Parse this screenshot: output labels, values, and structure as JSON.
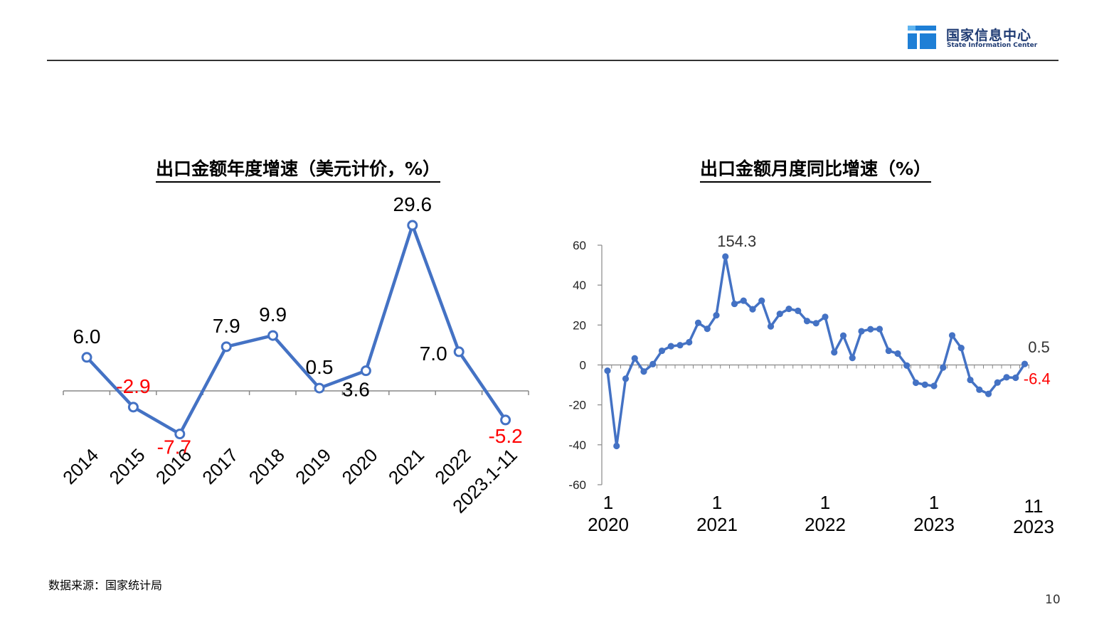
{
  "header": {
    "org_cn": "国家信息中心",
    "org_en": "State Information Center"
  },
  "footer": {
    "source": "数据来源：国家统计局",
    "page_number": "10"
  },
  "colors": {
    "line": "#4472C4",
    "negative_label": "#ff0000",
    "positive_label": "#000000",
    "logo": "#1f3b73"
  },
  "chart_data": [
    {
      "type": "line",
      "title": "出口金额年度增速（美元计价，%）",
      "categories": [
        "2014",
        "2015",
        "2016",
        "2017",
        "2018",
        "2019",
        "2020",
        "2021",
        "2022",
        "2023.1-11"
      ],
      "values": [
        6.0,
        -2.9,
        -7.7,
        7.9,
        9.9,
        0.5,
        3.6,
        29.6,
        7.0,
        -5.2
      ],
      "data_labels": [
        "6.0",
        "-2.9",
        "-7.7",
        "7.9",
        "9.9",
        "0.5",
        "3.6",
        "29.6",
        "7.0",
        "-5.2"
      ],
      "marker": "hollow-circle",
      "grid": false
    },
    {
      "type": "line",
      "title": "出口金额月度同比增速（%）",
      "x_tick_labels": [
        {
          "month": "1",
          "year": "2020"
        },
        {
          "month": "1",
          "year": "2021"
        },
        {
          "month": "1",
          "year": "2022"
        },
        {
          "month": "1",
          "year": "2023"
        },
        {
          "month": "11",
          "year": "2023"
        }
      ],
      "ylim": [
        -60,
        60
      ],
      "yticks": [
        "60",
        "40",
        "20",
        "0",
        "-20",
        "-40",
        "-60"
      ],
      "values": [
        -2.9,
        -40.6,
        -6.9,
        3.3,
        -3.3,
        0.4,
        7.1,
        9.4,
        9.9,
        11.4,
        21.1,
        18.1,
        24.9,
        154.3,
        30.6,
        32.2,
        27.9,
        32.2,
        19.3,
        25.6,
        28.1,
        27.1,
        22.0,
        20.9,
        24.1,
        6.3,
        14.7,
        3.5,
        16.9,
        17.9,
        18.0,
        7.1,
        5.7,
        -0.3,
        -8.9,
        -9.9,
        -10.5,
        -1.3,
        14.8,
        8.5,
        -7.5,
        -12.4,
        -14.5,
        -8.8,
        -6.2,
        -6.4,
        0.5
      ],
      "capped_value_display_level": 54.3,
      "data_labels": [
        {
          "label": "154.3",
          "color": "#333333"
        },
        {
          "label": "0.5",
          "color": "#333333"
        },
        {
          "label": "-6.4",
          "color": "#ff0000"
        }
      ],
      "marker": "filled-circle",
      "grid": false
    }
  ]
}
